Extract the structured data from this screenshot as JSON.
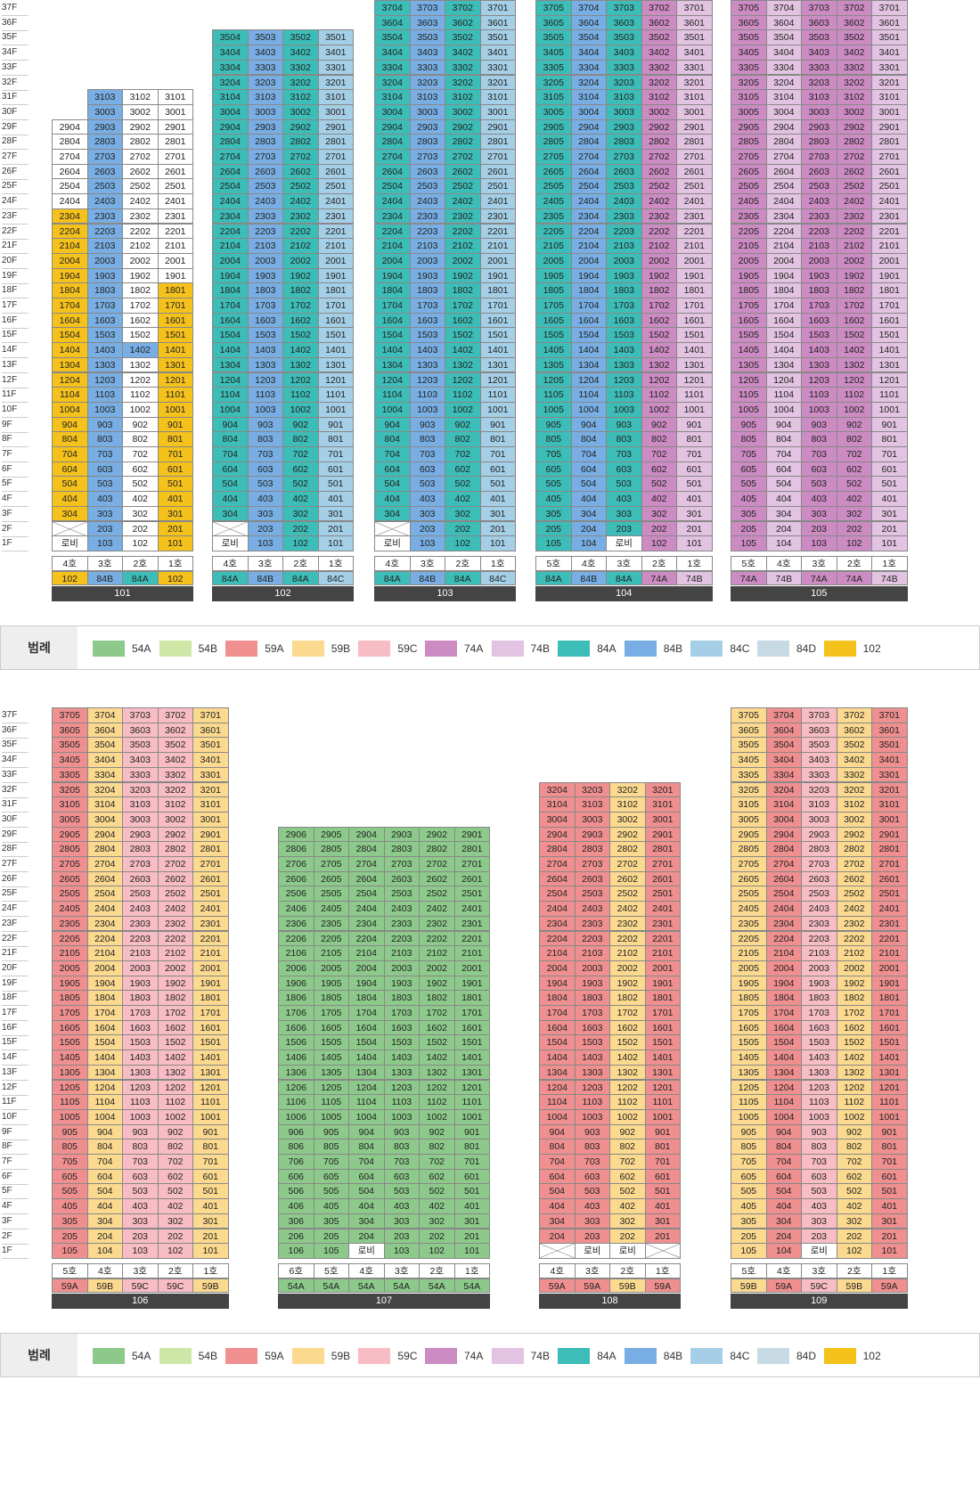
{
  "lobby_label": "로비",
  "floors": [
    "37F",
    "36F",
    "35F",
    "34F",
    "33F",
    "32F",
    "31F",
    "30F",
    "29F",
    "28F",
    "27F",
    "26F",
    "25F",
    "24F",
    "23F",
    "22F",
    "21F",
    "20F",
    "19F",
    "18F",
    "17F",
    "16F",
    "15F",
    "14F",
    "13F",
    "12F",
    "11F",
    "10F",
    "9F",
    "8F",
    "7F",
    "6F",
    "5F",
    "4F",
    "3F",
    "2F",
    "1F"
  ],
  "legend": {
    "title": "범례",
    "items": [
      {
        "label": "54A",
        "color": "#8cc98a"
      },
      {
        "label": "54B",
        "color": "#cfe7a6"
      },
      {
        "label": "59A",
        "color": "#ef8f8f"
      },
      {
        "label": "59B",
        "color": "#fbd98e"
      },
      {
        "label": "59C",
        "color": "#f7bcc4"
      },
      {
        "label": "74A",
        "color": "#cc8bc2"
      },
      {
        "label": "74B",
        "color": "#e2c3e1"
      },
      {
        "label": "84A",
        "color": "#3dbdb7"
      },
      {
        "label": "84B",
        "color": "#78aee3"
      },
      {
        "label": "84C",
        "color": "#a4cfe6"
      },
      {
        "label": "84D",
        "color": "#c7d9e2"
      },
      {
        "label": "102",
        "color": "#f5c11b"
      }
    ]
  },
  "buildings": [
    {
      "name": "101",
      "line_prefix": "",
      "lines": [
        4,
        3,
        2,
        1
      ],
      "types": [
        "102",
        "84B",
        "84A",
        "102"
      ],
      "top": [
        29,
        31,
        31,
        31
      ],
      "lobby": [
        1
      ],
      "empty": [
        [
          2,
          1
        ]
      ],
      "overrides": {
        "2304": "102",
        "2204": "102",
        "2104": "102",
        "2004": "102",
        "1904": "102",
        "1804": "102",
        "1704": "102",
        "1604": "102",
        "1504": "102",
        "1404": "102",
        "1304": "102",
        "1204": "102",
        "1104": "102",
        "1004": "102",
        "904": "102",
        "804": "102",
        "704": "102",
        "604": "102",
        "504": "102",
        "404": "102",
        "304": "102",
        "1801": "102",
        "1701": "102",
        "1601": "102",
        "1501": "102",
        "1401": "102",
        "1301": "102",
        "1201": "102",
        "1101": "102",
        "1001": "102",
        "901": "102",
        "801": "102",
        "701": "102",
        "601": "102",
        "501": "102",
        "401": "102",
        "301": "102",
        "201": "102",
        "101": "102",
        "1402": "84B"
      },
      "white": [
        "2904",
        "2804",
        "2704",
        "2604",
        "2504",
        "2404",
        "3102",
        "3002",
        "2902",
        "2802",
        "2702",
        "2602",
        "2502",
        "2402",
        "2302",
        "2202",
        "2102",
        "2002",
        "1902",
        "1802",
        "1702",
        "1602",
        "1502",
        "1302",
        "1202",
        "1102",
        "1002",
        "902",
        "802",
        "702",
        "602",
        "502",
        "402",
        "302",
        "202",
        "102",
        "3101",
        "3001",
        "2901",
        "2801",
        "2701",
        "2601",
        "2501",
        "2401",
        "2301",
        "2201",
        "2101",
        "2001",
        "1901"
      ]
    },
    {
      "name": "102",
      "lines": [
        4,
        3,
        2,
        1
      ],
      "types": [
        "84A",
        "84B",
        "84A",
        "84C"
      ],
      "top": [
        35,
        35,
        35,
        35
      ]
    },
    {
      "name": "103",
      "lines": [
        4,
        3,
        2,
        1
      ],
      "types": [
        "84A",
        "84B",
        "84A",
        "84C"
      ],
      "top": [
        37,
        37,
        37,
        37
      ]
    },
    {
      "name": "104",
      "lines": [
        5,
        4,
        3,
        2,
        1
      ],
      "types": [
        "84A",
        "84B",
        "84A",
        "74A",
        "74B"
      ],
      "top": [
        37,
        37,
        37,
        37,
        37
      ]
    },
    {
      "name": "105",
      "lines": [
        5,
        4,
        3,
        2,
        1
      ],
      "types": [
        "74A",
        "74B",
        "74A",
        "74A",
        "74B"
      ],
      "top": [
        37,
        37,
        37,
        37,
        37
      ]
    },
    {
      "name": "106",
      "lines": [
        5,
        4,
        3,
        2,
        1
      ],
      "types": [
        "59A",
        "59B",
        "59C",
        "59C",
        "59B"
      ],
      "top": [
        37,
        37,
        37,
        37,
        37
      ]
    },
    {
      "name": "107",
      "lines": [
        6,
        5,
        4,
        3,
        2,
        1
      ],
      "types": [
        "54A",
        "54A",
        "54A",
        "54A",
        "54A",
        "54A"
      ],
      "top": [
        29,
        29,
        29,
        29,
        29,
        29
      ]
    },
    {
      "name": "108",
      "lines": [
        4,
        3,
        2,
        1
      ],
      "types": [
        "59A",
        "59A",
        "59B",
        "59A"
      ],
      "top": [
        32,
        32,
        32,
        32
      ]
    },
    {
      "name": "109",
      "lines": [
        5,
        4,
        3,
        2,
        1
      ],
      "types": [
        "59B",
        "59A",
        "59C",
        "59B",
        "59A"
      ],
      "top": [
        37,
        37,
        37,
        37,
        37
      ]
    }
  ]
}
